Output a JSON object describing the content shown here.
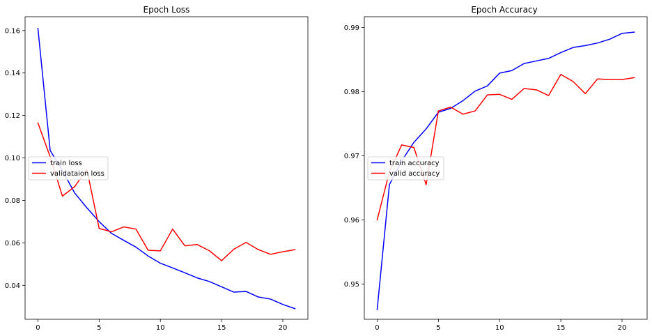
{
  "chart_data": [
    {
      "type": "line",
      "title": "Epoch Loss",
      "xlabel": "",
      "ylabel": "",
      "xlim": [
        -1.05,
        22.05
      ],
      "ylim": [
        0.024,
        0.1665
      ],
      "xticks": [
        0,
        5,
        10,
        15,
        20
      ],
      "yticks": [
        0.04,
        0.06,
        0.08,
        0.1,
        0.12,
        0.14,
        0.16
      ],
      "ytick_labels": [
        "0.04",
        "0.06",
        "0.08",
        "0.10",
        "0.12",
        "0.14",
        "0.16"
      ],
      "grid": false,
      "legend_position": "center-left",
      "x": [
        0,
        1,
        2,
        3,
        4,
        5,
        6,
        7,
        8,
        9,
        10,
        11,
        12,
        13,
        14,
        15,
        16,
        17,
        18,
        19,
        20,
        21
      ],
      "series": [
        {
          "name": "train loss",
          "color": "#0000ff",
          "values": [
            0.161,
            0.1035,
            0.094,
            0.0835,
            0.0765,
            0.07,
            0.0645,
            0.0612,
            0.058,
            0.0538,
            0.0504,
            0.0482,
            0.0459,
            0.0435,
            0.0418,
            0.0393,
            0.0368,
            0.0371,
            0.0345,
            0.0335,
            0.031,
            0.029
          ]
        },
        {
          "name": "validataion loss",
          "color": "#ff0000",
          "values": [
            0.1165,
            0.1005,
            0.082,
            0.0865,
            0.0945,
            0.0668,
            0.0652,
            0.0675,
            0.0665,
            0.0565,
            0.0562,
            0.0665,
            0.0586,
            0.0592,
            0.0563,
            0.0516,
            0.057,
            0.0602,
            0.0568,
            0.0546,
            0.0558,
            0.0568
          ]
        }
      ]
    },
    {
      "type": "line",
      "title": "Epoch Accuracy",
      "xlabel": "",
      "ylabel": "",
      "xlim": [
        -1.05,
        22.05
      ],
      "ylim": [
        0.9445,
        0.9917
      ],
      "xticks": [
        0,
        5,
        10,
        15,
        20
      ],
      "yticks": [
        0.95,
        0.96,
        0.97,
        0.98,
        0.99
      ],
      "ytick_labels": [
        "0.95",
        "0.96",
        "0.97",
        "0.98",
        "0.99"
      ],
      "grid": false,
      "legend_position": "center-left",
      "x": [
        0,
        1,
        2,
        3,
        4,
        5,
        6,
        7,
        8,
        9,
        10,
        11,
        12,
        13,
        14,
        15,
        16,
        17,
        18,
        19,
        20,
        21
      ],
      "series": [
        {
          "name": "train accuracy",
          "color": "#0000ff",
          "values": [
            0.946,
            0.9655,
            0.9692,
            0.9721,
            0.9742,
            0.9768,
            0.9774,
            0.9786,
            0.9801,
            0.9809,
            0.9829,
            0.9833,
            0.9844,
            0.9848,
            0.9852,
            0.9861,
            0.9869,
            0.9872,
            0.9876,
            0.9882,
            0.9891,
            0.9893
          ]
        },
        {
          "name": "valid accuracy",
          "color": "#ff0000",
          "values": [
            0.96,
            0.9675,
            0.9717,
            0.9713,
            0.9655,
            0.977,
            0.9776,
            0.9765,
            0.977,
            0.9795,
            0.9796,
            0.9788,
            0.9805,
            0.9803,
            0.9794,
            0.9827,
            0.9816,
            0.9797,
            0.982,
            0.9819,
            0.9819,
            0.9822
          ]
        }
      ]
    }
  ]
}
